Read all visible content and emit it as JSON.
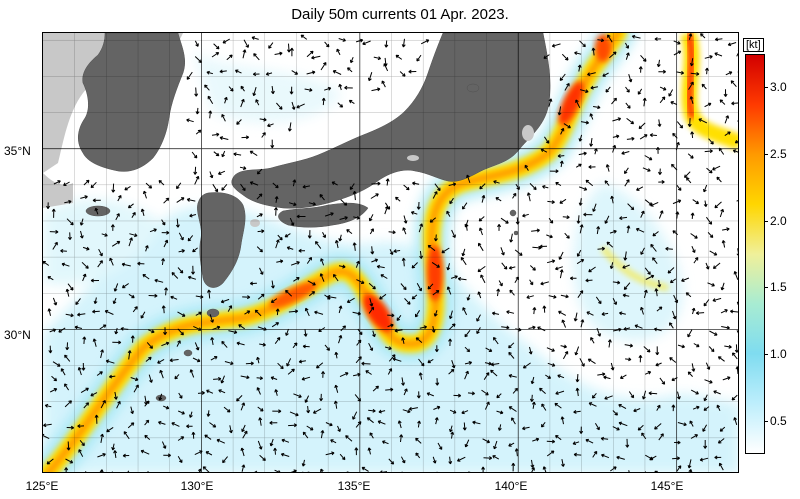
{
  "title": "Daily 50m currents 01 Apr. 2023.",
  "x_axis_labels": [
    "125°E",
    "130°E",
    "135°E",
    "140°E",
    "145°E"
  ],
  "y_axis_labels": [
    "35°N",
    "30°N"
  ],
  "colorbar": {
    "unit": "[kt]",
    "labels": [
      "3.0",
      "2.5",
      "2.0",
      "1.5",
      "1.0",
      "0.5"
    ],
    "min": 0.25,
    "max": 3.25,
    "colors": [
      "#ffffff",
      "#bdeefc",
      "#7fdcf0",
      "#a8ecd2",
      "#f0f09a",
      "#ffd600",
      "#ff9a00",
      "#ff3a00",
      "#d20000"
    ]
  },
  "map": {
    "lon_range": [
      125,
      147
    ],
    "lat_range": [
      26,
      38.2
    ],
    "land_color": "#646464",
    "light_land_color": "#c8c8c8",
    "ocean_color": "#ffffff",
    "current": "Kuroshio"
  }
}
